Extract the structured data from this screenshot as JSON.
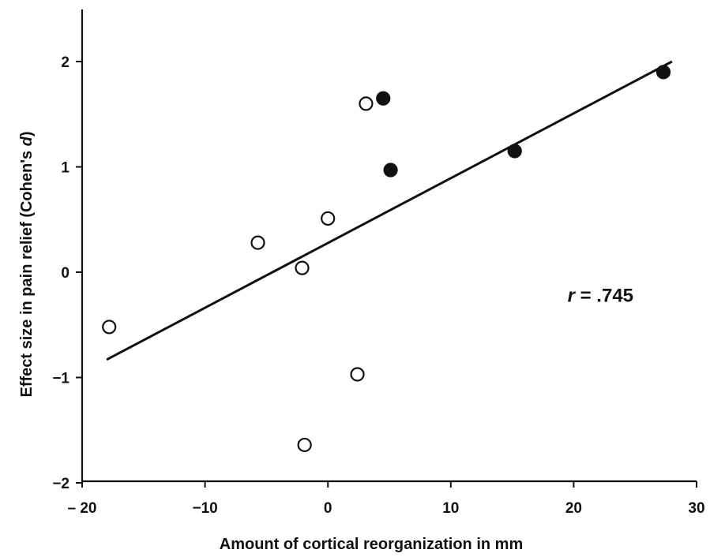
{
  "chart_data": {
    "type": "scatter",
    "title": "",
    "xlabel": "Amount of cortical reorganization in mm",
    "ylabel_prefix": "Effect size in pain relief (Cohen's ",
    "ylabel_italic": "d",
    "ylabel_suffix": ")",
    "xlim": [
      -20,
      30
    ],
    "ylim": [
      -2,
      2.5
    ],
    "x_ticks": [
      -20,
      -10,
      0,
      10,
      20,
      30
    ],
    "x_tick_labels": [
      "– 20",
      "−10",
      "0",
      "10",
      "20",
      "30"
    ],
    "y_ticks": [
      -2,
      -1,
      0,
      1,
      2
    ],
    "y_tick_labels": [
      "−2",
      "−1",
      "0",
      "1",
      "2"
    ],
    "grid": false,
    "series": [
      {
        "marker": "open-circle",
        "points": [
          {
            "x": -17.8,
            "y": -0.52
          },
          {
            "x": -5.7,
            "y": 0.28
          },
          {
            "x": -2.1,
            "y": 0.04
          },
          {
            "x": 0.0,
            "y": 0.51
          },
          {
            "x": 3.1,
            "y": 1.6
          },
          {
            "x": 2.4,
            "y": -0.97
          },
          {
            "x": -1.9,
            "y": -1.64
          }
        ]
      },
      {
        "marker": "filled-circle",
        "points": [
          {
            "x": 4.5,
            "y": 1.65
          },
          {
            "x": 5.1,
            "y": 0.97
          },
          {
            "x": 15.2,
            "y": 1.15
          },
          {
            "x": 27.3,
            "y": 1.9
          }
        ]
      }
    ],
    "regression_line": {
      "x1": -18.0,
      "y1": -0.83,
      "x2": 28.0,
      "y2": 2.0
    },
    "annotation": {
      "italic": "r",
      "text": " = .745",
      "x": 19.5,
      "y": -0.28
    }
  },
  "colors": {
    "ink": "#111111",
    "background": "#ffffff"
  }
}
